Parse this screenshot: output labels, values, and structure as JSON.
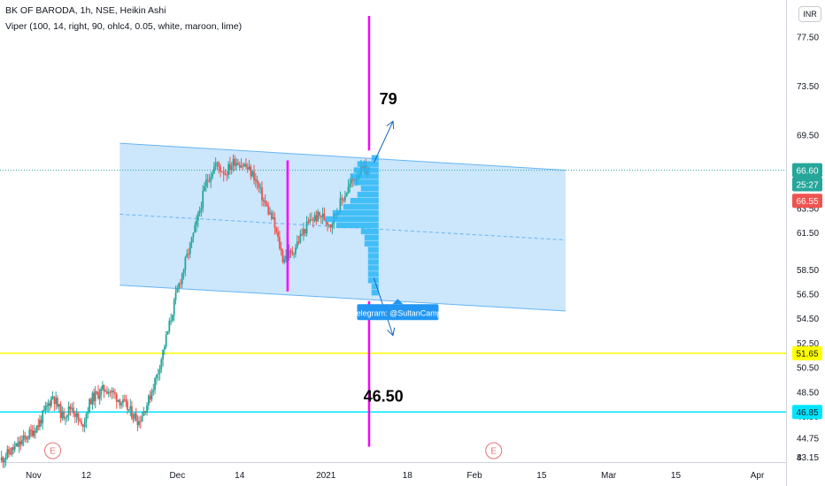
{
  "header": {
    "title": "BK OF BARODA, 1h, NSE, Heikin Ashi",
    "indicator": "Viper (100, 14, right, 90, ohlc4, 0.05, white, maroon, lime)"
  },
  "currency": "INR",
  "chart_data": {
    "type": "candlestick",
    "price_axis": {
      "range": [
        42.75,
        80.5
      ],
      "ticks": [
        "43.15",
        "44.75",
        "46.50",
        "48.50",
        "50.50",
        "52.50",
        "54.50",
        "56.50",
        "58.50",
        "61.50",
        "63.50",
        "65.50",
        "69.50",
        "73.50",
        "77.50",
        "8"
      ]
    },
    "time_axis": {
      "range": [
        "2020-10-25",
        "2021-04-07"
      ],
      "ticks": [
        {
          "label": "Nov",
          "date": "2020-11-01"
        },
        {
          "label": "12",
          "date": "2020-11-12"
        },
        {
          "label": "Dec",
          "date": "2020-12-01"
        },
        {
          "label": "14",
          "date": "2020-12-14"
        },
        {
          "label": "2021",
          "date": "2021-01-01"
        },
        {
          "label": "18",
          "date": "2021-01-18"
        },
        {
          "label": "Feb",
          "date": "2021-02-01"
        },
        {
          "label": "15",
          "date": "2021-02-15"
        },
        {
          "label": "Mar",
          "date": "2021-03-01"
        },
        {
          "label": "15",
          "date": "2021-03-15"
        },
        {
          "label": "Apr",
          "date": "2021-04-01"
        }
      ]
    },
    "price_path": [
      [
        "2020-10-25",
        42.9
      ],
      [
        "2020-10-29",
        44.2
      ],
      [
        "2020-11-02",
        45.8
      ],
      [
        "2020-11-05",
        48.2
      ],
      [
        "2020-11-07",
        46.5
      ],
      [
        "2020-11-09",
        47.3
      ],
      [
        "2020-11-11",
        45.6
      ],
      [
        "2020-11-13",
        47.9
      ],
      [
        "2020-11-16",
        48.8
      ],
      [
        "2020-11-18",
        48.2
      ],
      [
        "2020-11-20",
        47.4
      ],
      [
        "2020-11-23",
        46.1
      ],
      [
        "2020-11-25",
        47.8
      ],
      [
        "2020-11-27",
        50.2
      ],
      [
        "2020-11-29",
        53.4
      ],
      [
        "2020-12-01",
        56.8
      ],
      [
        "2020-12-03",
        59.5
      ],
      [
        "2020-12-05",
        62.2
      ],
      [
        "2020-12-07",
        65.6
      ],
      [
        "2020-12-09",
        67.1
      ],
      [
        "2020-12-11",
        66.4
      ],
      [
        "2020-12-13",
        67.4
      ],
      [
        "2020-12-15",
        67.0
      ],
      [
        "2020-12-17",
        66.1
      ],
      [
        "2020-12-19",
        64.1
      ],
      [
        "2020-12-21",
        62.4
      ],
      [
        "2020-12-23",
        59.4
      ],
      [
        "2020-12-25",
        59.9
      ],
      [
        "2020-12-27",
        61.4
      ],
      [
        "2020-12-29",
        62.6
      ],
      [
        "2020-12-31",
        62.9
      ],
      [
        "2021-01-02",
        62.2
      ],
      [
        "2021-01-04",
        63.9
      ],
      [
        "2021-01-06",
        65.4
      ],
      [
        "2021-01-08",
        66.5
      ],
      [
        "2021-01-10",
        66.6
      ]
    ],
    "candle_colors": {
      "up": "#26a69a",
      "down": "#ef5350"
    },
    "channel": {
      "upper": [
        [
          "2020-11-19",
          68.8
        ],
        [
          "2021-02-20",
          66.6
        ]
      ],
      "lower": [
        [
          "2020-11-19",
          57.2
        ],
        [
          "2021-02-20",
          55.1
        ]
      ],
      "mid": [
        [
          "2020-11-19",
          63.0
        ],
        [
          "2021-02-20",
          60.9
        ]
      ],
      "fill": "#bbdefb",
      "line": "#64b5f6"
    },
    "volume_profile": {
      "base_date": "2021-01-12",
      "color": "#29b6f6",
      "rows": [
        [
          67.6,
          2
        ],
        [
          67.1,
          6
        ],
        [
          66.6,
          7
        ],
        [
          66.1,
          8
        ],
        [
          65.6,
          7
        ],
        [
          65.1,
          5
        ],
        [
          64.6,
          6
        ],
        [
          64.1,
          8
        ],
        [
          63.6,
          10
        ],
        [
          63.1,
          13
        ],
        [
          62.6,
          15
        ],
        [
          62.1,
          12
        ],
        [
          61.6,
          5
        ],
        [
          61.1,
          4
        ],
        [
          60.6,
          4
        ],
        [
          60.1,
          3
        ],
        [
          59.6,
          3
        ],
        [
          59.1,
          3
        ],
        [
          58.6,
          3
        ],
        [
          58.1,
          3
        ],
        [
          57.6,
          3
        ],
        [
          57.1,
          2
        ],
        [
          56.6,
          2
        ]
      ]
    },
    "vertical_lines": [
      {
        "date": "2020-12-24",
        "from": 56.7,
        "to": 67.4,
        "color": "#ff00ff"
      },
      {
        "date": "2021-01-10",
        "from": 68.2,
        "to": 79.2,
        "color": "#ff00ff"
      },
      {
        "date": "2021-01-10",
        "from": 44.0,
        "to": 55.9,
        "color": "#ff00ff"
      }
    ],
    "horizontal_lines": [
      {
        "price": 51.65,
        "color": "#ffff00"
      },
      {
        "price": 46.85,
        "color": "#00e5ff"
      }
    ],
    "arrows": [
      {
        "from": [
          "2021-01-11",
          67.2
        ],
        "to": [
          "2021-01-15",
          70.6
        ],
        "direction": "up"
      },
      {
        "from": [
          "2021-01-11",
          57.8
        ],
        "to": [
          "2021-01-15",
          53.1
        ],
        "direction": "down"
      }
    ],
    "annotations": [
      {
        "text": "79",
        "date": "2021-01-14",
        "price": 72.0
      },
      {
        "text": "46.50",
        "date": "2021-01-13",
        "price": 47.7
      }
    ],
    "tooltip": {
      "text": "telegram: @SultanCamp",
      "date": "2021-01-16",
      "price": 55.0
    },
    "earnings_markers": [
      {
        "label": "E",
        "date": "2020-11-05"
      },
      {
        "label": "E",
        "date": "2021-02-05"
      }
    ],
    "price_labels": [
      {
        "text": "66.60",
        "price": 66.6,
        "bg": "#26a69a",
        "color": "#ffffff"
      },
      {
        "text": "25:27",
        "price": 65.45,
        "bg": "#26a69a",
        "color": "#ffffff"
      },
      {
        "text": "66.55",
        "price": 64.1,
        "bg": "#ef5350",
        "color": "#ffffff"
      },
      {
        "text": "51.65",
        "price": 51.65,
        "bg": "#ffff00",
        "color": "#131722"
      },
      {
        "text": "46.85",
        "price": 46.85,
        "bg": "#00e5ff",
        "color": "#131722"
      }
    ],
    "last_price": 66.6,
    "last_price_line_color": "#26a69a"
  }
}
